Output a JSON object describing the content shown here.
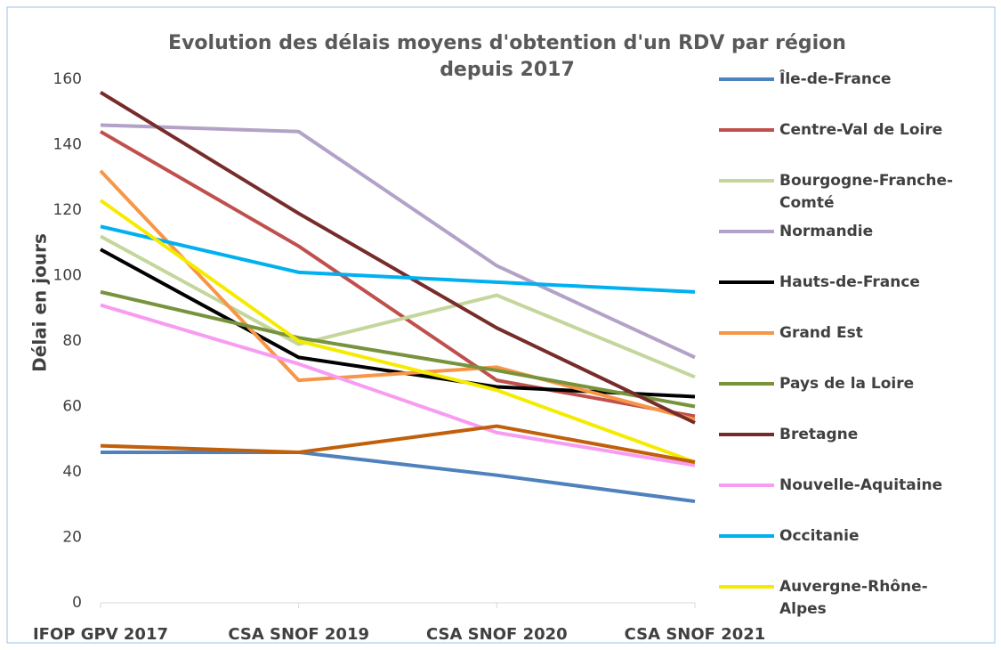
{
  "chart_data": {
    "type": "line",
    "title": "Evolution des délais moyens d'obtention d'un RDV par région depuis 2017",
    "y_label": "Délai en jours",
    "categories": [
      "IFOP GPV 2017",
      "CSA SNOF 2019",
      "CSA SNOF 2020",
      "CSA SNOF 2021"
    ],
    "ylim": [
      0,
      160
    ],
    "yticks": [
      0,
      20,
      40,
      60,
      80,
      100,
      120,
      140,
      160
    ],
    "grid": false,
    "legend": "right",
    "series": [
      {
        "name": "Île-de-France",
        "color": "#4f81bd",
        "values": [
          46,
          46,
          39,
          31
        ]
      },
      {
        "name": "Centre-Val de Loire",
        "color": "#c0504d",
        "values": [
          144,
          109,
          68,
          57
        ]
      },
      {
        "name": "Bourgogne-Franche-Comté",
        "color": "#c3d69b",
        "values": [
          112,
          79,
          94,
          69
        ]
      },
      {
        "name": "Normandie",
        "color": "#b3a2c7",
        "values": [
          146,
          144,
          103,
          75
        ]
      },
      {
        "name": "Hauts-de-France",
        "color": "#000000",
        "values": [
          108,
          75,
          66,
          63
        ]
      },
      {
        "name": "Grand Est",
        "color": "#f79646",
        "values": [
          132,
          68,
          72,
          56
        ]
      },
      {
        "name": "Pays de la Loire",
        "color": "#77933c",
        "values": [
          95,
          81,
          71,
          60
        ]
      },
      {
        "name": "Bretagne",
        "color": "#772c2a",
        "values": [
          156,
          119,
          84,
          55
        ]
      },
      {
        "name": "Nouvelle-Aquitaine",
        "color": "#f79cf2",
        "values": [
          91,
          73,
          52,
          42
        ]
      },
      {
        "name": "Occitanie",
        "color": "#00b0f0",
        "values": [
          115,
          101,
          98,
          95
        ]
      },
      {
        "name": "Auvergne-Rhône-Alpes",
        "color": "#f5eb00",
        "values": [
          123,
          80,
          65,
          43
        ]
      },
      {
        "name": null,
        "color": "#c0600a",
        "values": [
          48,
          46,
          54,
          43
        ]
      }
    ]
  }
}
